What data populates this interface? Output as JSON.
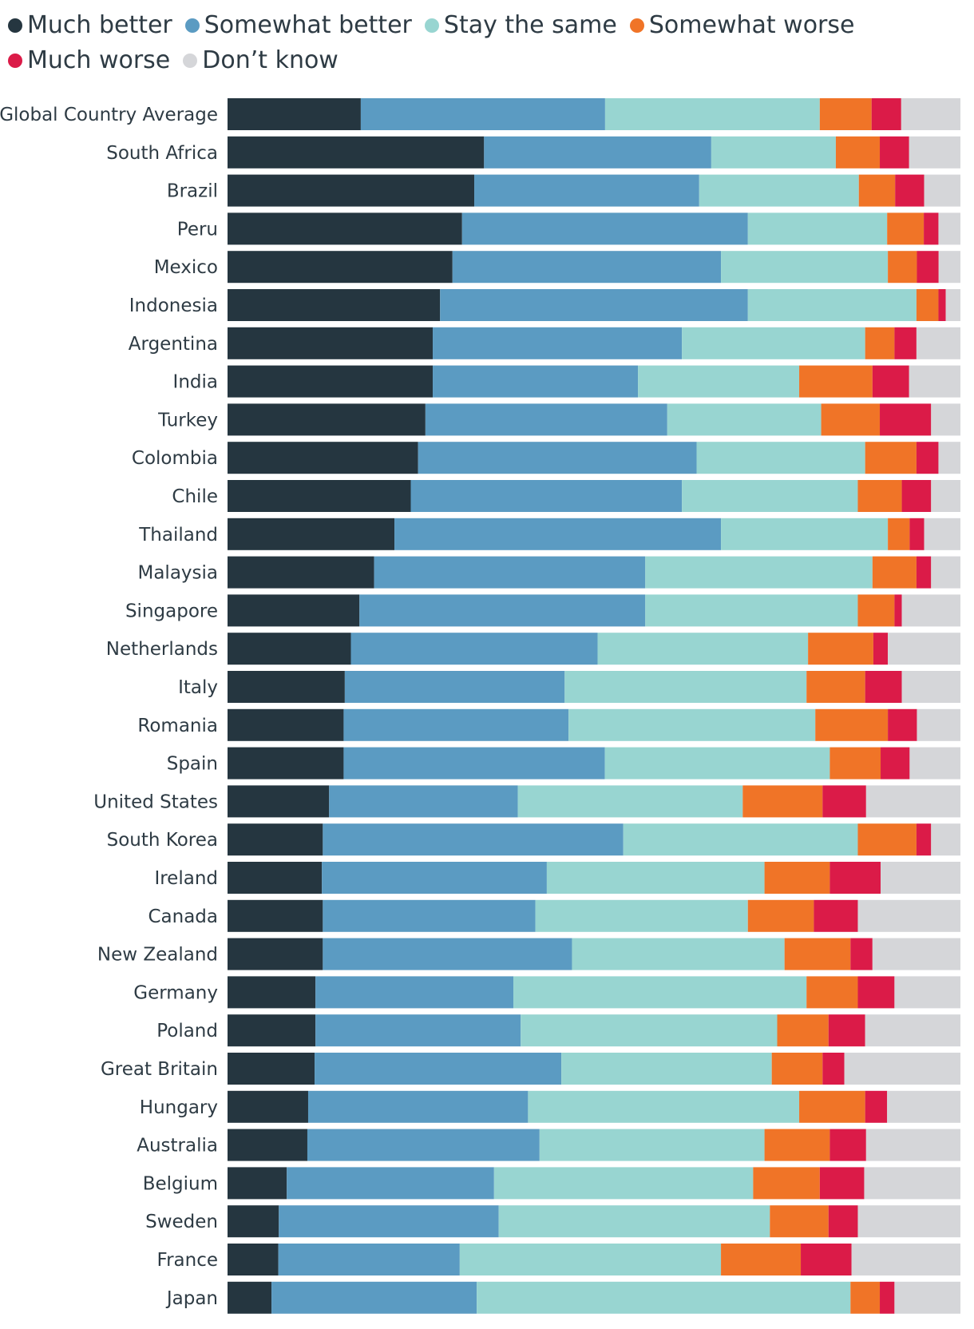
{
  "chart_data": {
    "type": "bar",
    "orientation": "horizontal",
    "stacked": true,
    "normalized_to": 100,
    "xlim": [
      0,
      100
    ],
    "title": "",
    "xlabel": "",
    "ylabel": "",
    "legend_position": "top",
    "categories": [
      "Global Country Average",
      "South Africa",
      "Brazil",
      "Peru",
      "Mexico",
      "Indonesia",
      "Argentina",
      "India",
      "Turkey",
      "Colombia",
      "Chile",
      "Thailand",
      "Malaysia",
      "Singapore",
      "Netherlands",
      "Italy",
      "Romania",
      "Spain",
      "United States",
      "South Korea",
      "Ireland",
      "Canada",
      "New Zealand",
      "Germany",
      "Poland",
      "Great Britain",
      "Hungary",
      "Australia",
      "Belgium",
      "Sweden",
      "France",
      "Japan"
    ],
    "series": [
      {
        "name": "Much better",
        "color": "#253640",
        "values": [
          18,
          35,
          34,
          32,
          31,
          29,
          28,
          28,
          27,
          26,
          25,
          23,
          20,
          18,
          17,
          16,
          16,
          16,
          14,
          13,
          13,
          13,
          13,
          12,
          12,
          12,
          11,
          11,
          8,
          7,
          7,
          6
        ]
      },
      {
        "name": "Somewhat better",
        "color": "#5b9bc2",
        "values": [
          33,
          31,
          31,
          39,
          37,
          42,
          34,
          28,
          33,
          38,
          37,
          45,
          37,
          39,
          34,
          30,
          31,
          36,
          26,
          41,
          31,
          29,
          34,
          27,
          28,
          34,
          30,
          32,
          28,
          30,
          25,
          28
        ]
      },
      {
        "name": "Stay the same",
        "color": "#98d5d1",
        "values": [
          29,
          17,
          22,
          19,
          23,
          23,
          25,
          22,
          21,
          23,
          24,
          23,
          31,
          29,
          29,
          33,
          34,
          31,
          31,
          32,
          30,
          29,
          29,
          40,
          35,
          29,
          37,
          31,
          35,
          37,
          36,
          51
        ]
      },
      {
        "name": "Somewhat worse",
        "color": "#f07427",
        "values": [
          7,
          6,
          5,
          5,
          4,
          3,
          4,
          10,
          8,
          7,
          6,
          3,
          6,
          5,
          9,
          8,
          10,
          7,
          11,
          8,
          9,
          9,
          9,
          7,
          7,
          7,
          9,
          9,
          9,
          8,
          11,
          4
        ]
      },
      {
        "name": "Much worse",
        "color": "#db1b48",
        "values": [
          4,
          4,
          4,
          2,
          3,
          1,
          3,
          5,
          7,
          3,
          4,
          2,
          2,
          1,
          2,
          5,
          4,
          4,
          6,
          2,
          7,
          6,
          3,
          5,
          5,
          3,
          3,
          5,
          6,
          4,
          7,
          2
        ]
      },
      {
        "name": "Don’t know",
        "color": "#d5d6d9",
        "values": [
          8,
          7,
          5,
          3,
          3,
          2,
          6,
          7,
          4,
          3,
          4,
          5,
          4,
          8,
          10,
          8,
          6,
          7,
          13,
          4,
          11,
          14,
          12,
          9,
          13,
          16,
          10,
          13,
          13,
          14,
          15,
          9
        ]
      }
    ]
  },
  "legend": {
    "items": [
      {
        "label": "Much better",
        "color": "#253640"
      },
      {
        "label": "Somewhat better",
        "color": "#5b9bc2"
      },
      {
        "label": "Stay the same",
        "color": "#98d5d1"
      },
      {
        "label": "Somewhat worse",
        "color": "#f07427"
      },
      {
        "label": "Much worse",
        "color": "#db1b48"
      },
      {
        "label": "Don’t know",
        "color": "#d5d6d9"
      }
    ]
  }
}
